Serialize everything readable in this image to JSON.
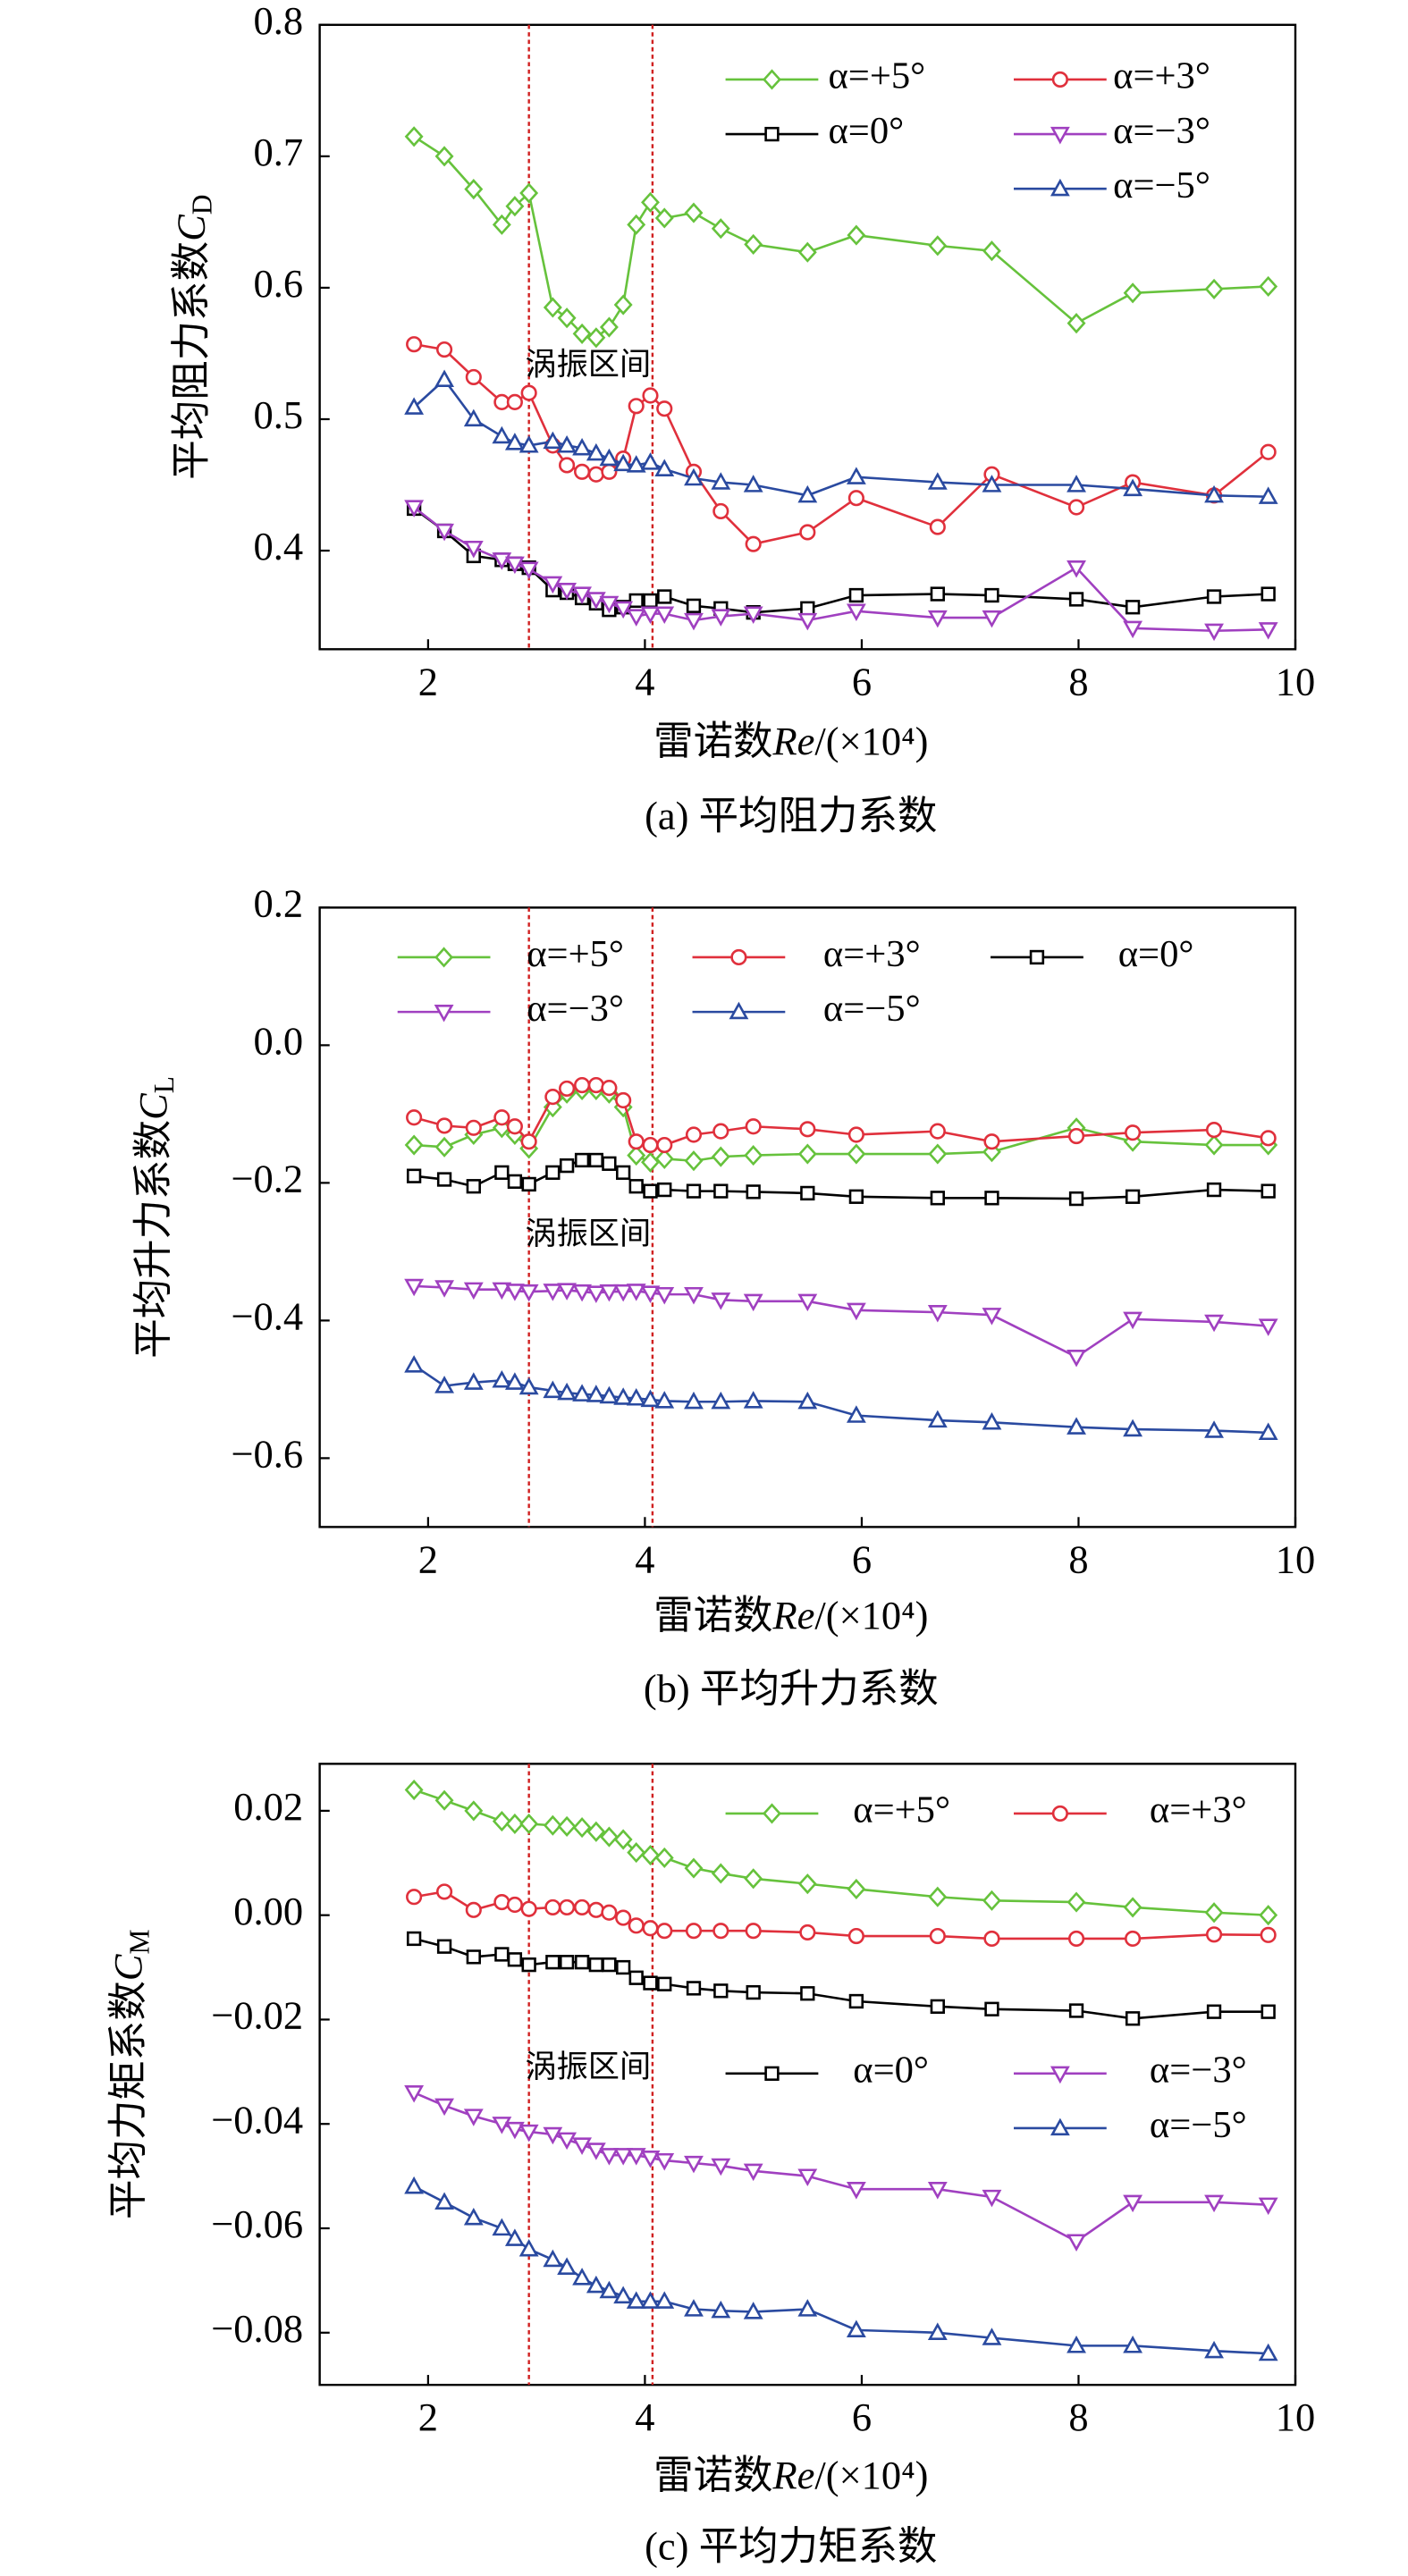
{
  "chart_data": [
    {
      "type": "line",
      "caption": "(a) 平均阻力系数",
      "ylabel": "平均阻力系数",
      "ylabel_symbol": "C",
      "ylabel_sub": "D",
      "xlabel": "雷诺数",
      "xlabel_symbol": "Re",
      "xlabel_unit": "/(×10⁴)",
      "annotation": "涡振区间",
      "vlines": [
        2.93,
        4.07
      ],
      "xlim": [
        1,
        10
      ],
      "xticks": [
        2,
        4,
        6,
        8,
        10
      ],
      "ylim": [
        0.325,
        0.8
      ],
      "yticks": [
        0.4,
        0.5,
        0.6,
        0.7,
        0.8
      ],
      "x": [
        1.87,
        2.15,
        2.42,
        2.68,
        2.8,
        2.93,
        3.15,
        3.28,
        3.42,
        3.55,
        3.67,
        3.8,
        3.92,
        4.05,
        4.18,
        4.45,
        4.7,
        5.0,
        5.5,
        5.95,
        6.7,
        7.2,
        7.98,
        8.5,
        9.25,
        9.75
      ],
      "series": [
        {
          "name": "α=+5°",
          "color": "#66c23c",
          "marker": "diamond",
          "values": [
            0.715,
            0.7,
            0.675,
            0.648,
            0.662,
            0.672,
            0.585,
            0.577,
            0.565,
            0.562,
            0.57,
            0.587,
            0.648,
            0.665,
            0.653,
            0.657,
            0.645,
            0.633,
            0.627,
            0.64,
            0.632,
            0.628,
            0.573,
            0.596,
            0.599,
            0.601
          ]
        },
        {
          "name": "α=+3°",
          "color": "#e0303c",
          "marker": "circle",
          "values": [
            0.557,
            0.553,
            0.532,
            0.513,
            0.513,
            0.52,
            0.48,
            0.465,
            0.46,
            0.458,
            0.46,
            0.47,
            0.51,
            0.518,
            0.508,
            0.46,
            0.43,
            0.405,
            0.414,
            0.44,
            0.418,
            0.458,
            0.433,
            0.452,
            0.442,
            0.475
          ]
        },
        {
          "name": "α=0°",
          "color": "#000000",
          "marker": "square",
          "values": [
            0.432,
            0.415,
            0.396,
            0.393,
            0.39,
            0.387,
            0.37,
            0.368,
            0.364,
            0.36,
            0.355,
            0.357,
            0.362,
            0.362,
            0.365,
            0.358,
            0.356,
            0.353,
            0.356,
            0.366,
            0.367,
            0.366,
            0.363,
            0.357,
            0.365,
            0.367
          ]
        },
        {
          "name": "α=−3°",
          "color": "#a040c0",
          "marker": "tri-down",
          "values": [
            0.433,
            0.415,
            0.402,
            0.393,
            0.39,
            0.386,
            0.375,
            0.37,
            0.367,
            0.363,
            0.36,
            0.356,
            0.35,
            0.352,
            0.352,
            0.347,
            0.35,
            0.352,
            0.347,
            0.354,
            0.349,
            0.349,
            0.387,
            0.341,
            0.339,
            0.34
          ]
        },
        {
          "name": "α=−5°",
          "color": "#2a4aa0",
          "marker": "tri-up",
          "values": [
            0.509,
            0.53,
            0.5,
            0.487,
            0.482,
            0.48,
            0.483,
            0.48,
            0.478,
            0.474,
            0.47,
            0.466,
            0.465,
            0.467,
            0.462,
            0.455,
            0.452,
            0.45,
            0.442,
            0.456,
            0.452,
            0.45,
            0.45,
            0.447,
            0.442,
            0.441
          ]
        }
      ]
    },
    {
      "type": "line",
      "caption": "(b) 平均升力系数",
      "ylabel": "平均升力系数",
      "ylabel_symbol": "C",
      "ylabel_sub": "L",
      "xlabel": "雷诺数",
      "xlabel_symbol": "Re",
      "xlabel_unit": "/(×10⁴)",
      "annotation": "涡振区间",
      "vlines": [
        2.93,
        4.07
      ],
      "xlim": [
        1,
        10
      ],
      "xticks": [
        2,
        4,
        6,
        8,
        10
      ],
      "ylim": [
        -0.7,
        0.2
      ],
      "yticks": [
        {
          "value": -0.6,
          "label": "−0.6"
        },
        {
          "value": -0.4,
          "label": "−0.4"
        },
        {
          "value": -0.2,
          "label": "−0.2"
        },
        {
          "value": 0,
          "label": "0.0"
        },
        0.2
      ],
      "x": [
        1.87,
        2.15,
        2.42,
        2.68,
        2.8,
        2.93,
        3.15,
        3.28,
        3.42,
        3.55,
        3.67,
        3.8,
        3.92,
        4.05,
        4.18,
        4.45,
        4.7,
        5.0,
        5.5,
        5.95,
        6.7,
        7.2,
        7.98,
        8.5,
        9.25,
        9.75
      ],
      "series": [
        {
          "name": "α=+5°",
          "color": "#66c23c",
          "marker": "diamond",
          "values": [
            -0.145,
            -0.148,
            -0.13,
            -0.12,
            -0.13,
            -0.15,
            -0.09,
            -0.07,
            -0.065,
            -0.065,
            -0.07,
            -0.09,
            -0.16,
            -0.17,
            -0.165,
            -0.168,
            -0.162,
            -0.16,
            -0.158,
            -0.158,
            -0.158,
            -0.155,
            -0.12,
            -0.14,
            -0.145,
            -0.145
          ]
        },
        {
          "name": "α=+3°",
          "color": "#e0303c",
          "marker": "circle",
          "values": [
            -0.105,
            -0.117,
            -0.12,
            -0.105,
            -0.118,
            -0.14,
            -0.075,
            -0.063,
            -0.058,
            -0.058,
            -0.062,
            -0.08,
            -0.14,
            -0.145,
            -0.145,
            -0.13,
            -0.125,
            -0.118,
            -0.122,
            -0.13,
            -0.125,
            -0.14,
            -0.132,
            -0.127,
            -0.123,
            -0.135
          ]
        },
        {
          "name": "α=0°",
          "color": "#000000",
          "marker": "square",
          "values": [
            -0.19,
            -0.195,
            -0.205,
            -0.185,
            -0.198,
            -0.202,
            -0.185,
            -0.175,
            -0.167,
            -0.167,
            -0.172,
            -0.185,
            -0.205,
            -0.212,
            -0.21,
            -0.212,
            -0.212,
            -0.213,
            -0.215,
            -0.22,
            -0.222,
            -0.222,
            -0.223,
            -0.22,
            -0.21,
            -0.212
          ]
        },
        {
          "name": "α=−3°",
          "color": "#a040c0",
          "marker": "tri-down",
          "values": [
            -0.35,
            -0.352,
            -0.355,
            -0.355,
            -0.357,
            -0.358,
            -0.357,
            -0.356,
            -0.358,
            -0.36,
            -0.358,
            -0.358,
            -0.357,
            -0.36,
            -0.362,
            -0.362,
            -0.37,
            -0.372,
            -0.372,
            -0.385,
            -0.388,
            -0.392,
            -0.453,
            -0.398,
            -0.402,
            -0.408
          ]
        },
        {
          "name": "α=−5°",
          "color": "#2a4aa0",
          "marker": "tri-up",
          "values": [
            -0.465,
            -0.495,
            -0.49,
            -0.487,
            -0.49,
            -0.497,
            -0.502,
            -0.505,
            -0.507,
            -0.508,
            -0.51,
            -0.512,
            -0.513,
            -0.515,
            -0.517,
            -0.518,
            -0.518,
            -0.517,
            -0.518,
            -0.538,
            -0.545,
            -0.548,
            -0.555,
            -0.558,
            -0.56,
            -0.563
          ]
        }
      ]
    },
    {
      "type": "line",
      "caption": "(c) 平均力矩系数",
      "ylabel": "平均力矩系数",
      "ylabel_symbol": "C",
      "ylabel_sub": "M",
      "xlabel": "雷诺数",
      "xlabel_symbol": "Re",
      "xlabel_unit": "/(×10⁴)",
      "annotation": "涡振区间",
      "vlines": [
        2.93,
        4.07
      ],
      "xlim": [
        1,
        10
      ],
      "xticks": [
        2,
        4,
        6,
        8,
        10
      ],
      "ylim": [
        -0.09,
        0.029
      ],
      "yticks": [
        {
          "value": -0.08,
          "label": "−0.08"
        },
        {
          "value": -0.06,
          "label": "−0.06"
        },
        {
          "value": -0.04,
          "label": "−0.04"
        },
        {
          "value": -0.02,
          "label": "−0.02"
        },
        {
          "value": 0,
          "label": "0.00"
        },
        0.02
      ],
      "x": [
        1.87,
        2.15,
        2.42,
        2.68,
        2.8,
        2.93,
        3.15,
        3.28,
        3.42,
        3.55,
        3.67,
        3.8,
        3.92,
        4.05,
        4.18,
        4.45,
        4.7,
        5.0,
        5.5,
        5.95,
        6.7,
        7.2,
        7.98,
        8.5,
        9.25,
        9.75
      ],
      "series": [
        {
          "name": "α=+5°",
          "color": "#66c23c",
          "marker": "diamond",
          "values": [
            0.024,
            0.022,
            0.02,
            0.018,
            0.0175,
            0.0175,
            0.0172,
            0.017,
            0.0168,
            0.016,
            0.015,
            0.0145,
            0.012,
            0.0115,
            0.011,
            0.009,
            0.008,
            0.007,
            0.006,
            0.005,
            0.0035,
            0.0028,
            0.0025,
            0.0015,
            0.0005,
            0
          ]
        },
        {
          "name": "α=+3°",
          "color": "#e0303c",
          "marker": "circle",
          "values": [
            0.0035,
            0.0045,
            0.001,
            0.0025,
            0.002,
            0.0012,
            0.0015,
            0.0015,
            0.0015,
            0.001,
            0.0005,
            -0.0005,
            -0.002,
            -0.0025,
            -0.003,
            -0.003,
            -0.003,
            -0.003,
            -0.0033,
            -0.004,
            -0.004,
            -0.0045,
            -0.0045,
            -0.0045,
            -0.0037,
            -0.0038
          ]
        },
        {
          "name": "α=0°",
          "color": "#000000",
          "marker": "square",
          "values": [
            -0.0045,
            -0.006,
            -0.008,
            -0.0075,
            -0.0085,
            -0.0095,
            -0.009,
            -0.009,
            -0.009,
            -0.0095,
            -0.0095,
            -0.01,
            -0.012,
            -0.013,
            -0.0132,
            -0.014,
            -0.0145,
            -0.0148,
            -0.015,
            -0.0165,
            -0.0175,
            -0.018,
            -0.0183,
            -0.0198,
            -0.0185,
            -0.0185
          ]
        },
        {
          "name": "α=−3°",
          "color": "#a040c0",
          "marker": "tri-down",
          "values": [
            -0.034,
            -0.0365,
            -0.0385,
            -0.04,
            -0.041,
            -0.0415,
            -0.042,
            -0.043,
            -0.044,
            -0.045,
            -0.046,
            -0.046,
            -0.046,
            -0.0465,
            -0.047,
            -0.0475,
            -0.048,
            -0.049,
            -0.05,
            -0.0525,
            -0.0525,
            -0.054,
            -0.0625,
            -0.055,
            -0.055,
            -0.0555
          ]
        },
        {
          "name": "α=−5°",
          "color": "#2a4aa0",
          "marker": "tri-up",
          "values": [
            -0.052,
            -0.055,
            -0.058,
            -0.06,
            -0.062,
            -0.064,
            -0.066,
            -0.0675,
            -0.0695,
            -0.071,
            -0.072,
            -0.073,
            -0.074,
            -0.074,
            -0.074,
            -0.0755,
            -0.0758,
            -0.076,
            -0.0755,
            -0.0795,
            -0.08,
            -0.081,
            -0.0825,
            -0.0825,
            -0.0835,
            -0.084
          ]
        }
      ]
    }
  ]
}
